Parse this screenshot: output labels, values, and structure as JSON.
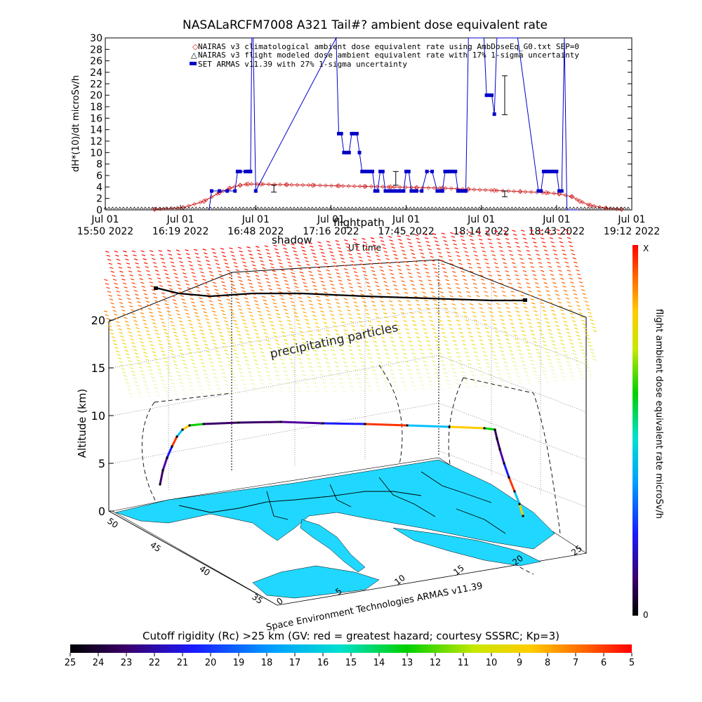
{
  "top_chart": {
    "title": "NASALaRCFM7008  A321 Tail#? ambient dose equivalent rate",
    "ylabel": "dH*(10)/dt microSv/h",
    "ylim": [
      0,
      30
    ],
    "yticks": [
      0,
      2,
      4,
      6,
      8,
      10,
      12,
      14,
      16,
      18,
      20,
      22,
      24,
      26,
      28,
      30
    ],
    "x_tick_labels": [
      [
        "Jul 01",
        "15:50 2022"
      ],
      [
        "Jul 01",
        "16:19 2022"
      ],
      [
        "Jul 01",
        "16:48 2022"
      ],
      [
        "Jul 01",
        "17:16 2022"
      ],
      [
        "Jul 01",
        "17:45 2022"
      ],
      [
        "Jul 01",
        "18:14 2022"
      ],
      [
        "Jul 01",
        "18:43 2022"
      ],
      [
        "Jul 01",
        "19:12 2022"
      ]
    ],
    "xlabel": "UT time",
    "legend": [
      {
        "label": "NAIRAS v3 climatological ambient dose equivalent rate using AmbDoseEq_G0.txt SEP=0",
        "color": "#d02020",
        "marker": "diamond"
      },
      {
        "label": "NAIRAS v3 flight modeled dose ambient equivalent rate with 17% 1-sigma uncertainty",
        "color": "#000000",
        "marker": "triangle"
      },
      {
        "label": "SET ARMAS v11.39 with 27% 1-sigma uncertainty",
        "color": "#0000c8",
        "marker": "square"
      }
    ]
  },
  "chart_data": {
    "type": "line",
    "x_unit": "minutes after 15:50 UT",
    "xlim": [
      0,
      203
    ],
    "ylim": [
      0,
      30
    ],
    "series": [
      {
        "name": "NAIRAS v3 climatological ambient dose equivalent rate using AmbDoseEq_G0.txt SEP=0",
        "color": "#d02020",
        "x": [
          19,
          30,
          38,
          44,
          48,
          52,
          55,
          60,
          70,
          80,
          90,
          100,
          110,
          120,
          130,
          140,
          150,
          160,
          170,
          175,
          180,
          183,
          187,
          193,
          199
        ],
        "y": [
          0.1,
          0.4,
          1.5,
          3.0,
          3.8,
          4.3,
          4.5,
          4.5,
          4.4,
          4.3,
          4.2,
          4.1,
          4.0,
          3.9,
          3.8,
          3.6,
          3.4,
          3.2,
          3.0,
          2.8,
          2.3,
          1.5,
          0.8,
          0.3,
          0.1
        ]
      },
      {
        "name": "NAIRAS v3 flight modeled dose ambient equivalent rate with 17% 1-sigma uncertainty",
        "color": "#000000",
        "x": [
          0,
          203
        ],
        "y": [
          0.05,
          0.05
        ],
        "error_points": [
          {
            "x": 65,
            "y": 3.7,
            "err": 0.6
          },
          {
            "x": 112,
            "y": 5.5,
            "err": 1.2
          },
          {
            "x": 154,
            "y": 20.0,
            "err": 3.4
          },
          {
            "x": 154,
            "y": 2.8,
            "err": 0.5
          }
        ]
      },
      {
        "name": "SET ARMAS v11.39 with 27% 1-sigma uncertainty",
        "color": "#0000c8",
        "x": [
          40,
          41,
          44,
          47,
          50,
          51,
          52,
          54,
          55,
          55.5,
          56,
          56.5,
          57,
          58,
          89,
          90,
          91,
          92,
          93,
          94,
          95,
          96,
          97,
          98,
          99,
          100,
          101,
          102,
          103,
          104,
          105,
          106,
          107,
          108,
          109,
          110,
          111,
          112,
          113,
          114,
          115,
          116,
          117,
          118,
          119,
          120,
          122,
          124,
          126,
          128,
          129,
          130,
          131,
          132,
          133,
          134,
          135,
          136,
          137,
          138,
          139,
          140,
          141,
          142,
          143,
          144,
          145,
          146,
          147,
          148,
          149,
          150,
          151,
          152,
          153,
          154,
          155,
          155.5,
          156,
          156.5,
          157,
          158,
          159,
          167,
          168,
          169,
          170,
          171,
          172,
          173,
          174,
          175,
          176,
          177,
          178,
          179,
          180,
          181,
          182,
          183
        ],
        "y": [
          0,
          3.3,
          3.3,
          3.3,
          3.3,
          6.7,
          6.7,
          6.7,
          6.7,
          6.7,
          6.7,
          30,
          30,
          3.3,
          30,
          13.3,
          13.3,
          10,
          10,
          10,
          13.3,
          13.3,
          13.3,
          10,
          6.7,
          6.7,
          6.7,
          6.7,
          6.7,
          3.3,
          3.3,
          6.7,
          6.7,
          3.3,
          3.3,
          3.3,
          3.3,
          3.3,
          3.3,
          3.3,
          3.3,
          6.7,
          6.7,
          3.3,
          3.3,
          3.3,
          3.3,
          6.7,
          6.7,
          3.3,
          3.3,
          3.3,
          6.7,
          6.7,
          6.7,
          6.7,
          6.7,
          3.3,
          3.3,
          3.3,
          3.3,
          30,
          30,
          30,
          30,
          30,
          30,
          30,
          20,
          20,
          20,
          16.7,
          30,
          30,
          30,
          30,
          30,
          30,
          30,
          30,
          30,
          30,
          30,
          3.3,
          3.3,
          6.7,
          6.7,
          6.7,
          6.7,
          6.7,
          6.7,
          3.3,
          3.3,
          30,
          0,
          0,
          0,
          0,
          0,
          0
        ]
      }
    ]
  },
  "three_d": {
    "shadow_label": "shadow",
    "flightpath_label": "flightpath",
    "ut_time_label": "UT time",
    "particles_label": "precipitating particles",
    "zlabel": "Altitude (km)",
    "zticks": [
      "0",
      "5",
      "10",
      "15",
      "20"
    ],
    "lat_ticks": [
      "35",
      "40",
      "45",
      "50"
    ],
    "lon_ticks": [
      "0",
      "5",
      "10",
      "15",
      "20",
      "25"
    ],
    "credit": "Space Environment Technologies ARMAS v11.39"
  },
  "vertical_colorbar": {
    "label": "flight ambient dose equivalent rate microSv/h",
    "max_label": "X",
    "min_label": "0"
  },
  "cutoff_colorbar": {
    "title": "Cutoff rigidity (Rc) >25 km (GV: red = greatest hazard; courtesy SSSRC; Kp=3)",
    "ticks": [
      "25",
      "24",
      "23",
      "22",
      "21",
      "20",
      "19",
      "18",
      "17",
      "16",
      "15",
      "14",
      "13",
      "12",
      "11",
      "10",
      "9",
      "8",
      "7",
      "6",
      "5"
    ]
  }
}
